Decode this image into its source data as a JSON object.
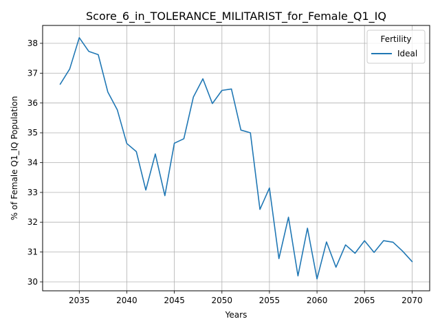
{
  "chart_data": {
    "type": "line",
    "title": "Score_6_in_TOLERANCE_MILITARIST_for_Female_Q1_IQ",
    "xlabel": "Years",
    "ylabel": "% of Female Q1_IQ Population",
    "xlim": [
      2031.15,
      2071.85
    ],
    "ylim": [
      29.7,
      38.6
    ],
    "xticks": [
      2035,
      2040,
      2045,
      2050,
      2055,
      2060,
      2065,
      2070
    ],
    "yticks": [
      30,
      31,
      32,
      33,
      34,
      35,
      36,
      37,
      38
    ],
    "grid": true,
    "legend": {
      "title": "Fertility",
      "placement": "top-right"
    },
    "series": [
      {
        "name": "Ideal",
        "color": "#1f77b4",
        "x": [
          2033,
          2034,
          2035,
          2036,
          2037,
          2038,
          2039,
          2040,
          2041,
          2042,
          2043,
          2044,
          2045,
          2046,
          2047,
          2048,
          2049,
          2050,
          2051,
          2052,
          2053,
          2054,
          2055,
          2056,
          2057,
          2058,
          2059,
          2060,
          2061,
          2062,
          2063,
          2064,
          2065,
          2066,
          2067,
          2068,
          2069,
          2070
        ],
        "values": [
          36.63,
          37.14,
          38.19,
          37.73,
          37.62,
          36.37,
          35.77,
          34.64,
          34.37,
          33.08,
          34.29,
          32.89,
          34.65,
          34.8,
          36.2,
          36.81,
          35.98,
          36.42,
          36.47,
          35.09,
          35.0,
          32.43,
          33.15,
          30.78,
          32.17,
          30.2,
          31.8,
          30.1,
          31.34,
          30.49,
          31.24,
          30.96,
          31.38,
          30.99,
          31.38,
          31.33,
          31.03,
          30.68
        ]
      }
    ]
  }
}
